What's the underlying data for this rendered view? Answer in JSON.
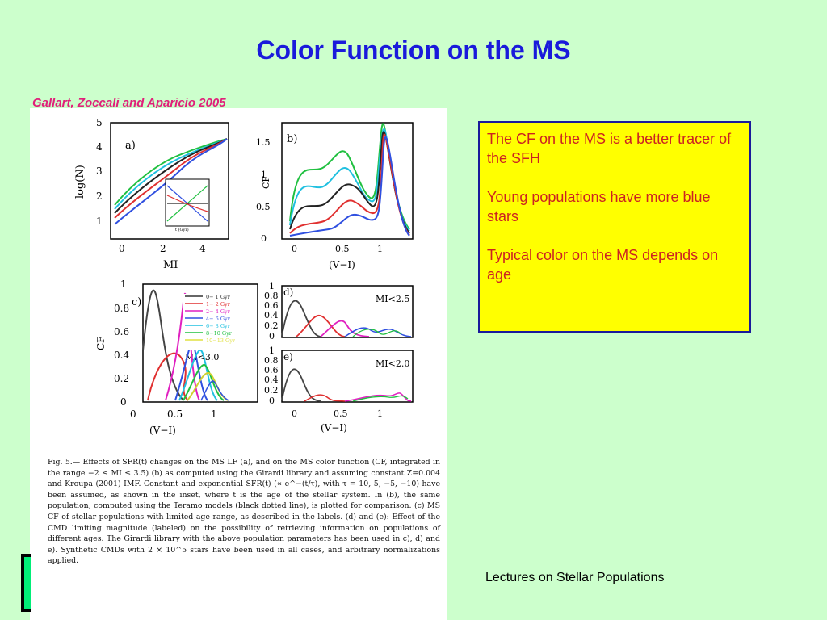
{
  "slide": {
    "title": "Color Function on the MS",
    "citation": "Gallart, Zoccali and Aparicio 2005",
    "bullets": [
      "The CF on the MS is a better tracer of the SFH",
      "Young populations have more blue stars",
      "Typical color on the MS depends on age"
    ],
    "footer": "Lectures on Stellar Populations"
  },
  "figure": {
    "caption": "Fig. 5.— Effects of SFR(t) changes on the MS LF (a), and on the MS color function (CF, integrated in the range −2 ≤ MI ≤ 3.5) (b) as computed using the Girardi library and assuming constant Z=0.004 and Kroupa (2001) IMF. Constant and exponential SFR(t) (∝ e^−(t/τ), with τ = 10, 5, −5, −10) have been assumed, as shown in the inset, where t is the age of the stellar system. In (b), the same population, computed using the Teramo models (black dotted line), is plotted for comparison. (c) MS CF of stellar populations with limited age range, as described in the labels. (d) and (e): Effect of the CMD limiting magnitude (labeled) on the possibility of retrieving information on populations of different ages. The Girardi library with the above population parameters has been used in c), d) and e). Synthetic CMDs with 2 × 10^5 stars have been used in all cases, and arbitrary normalizations applied.",
    "panels": {
      "a": {
        "label": "a)",
        "xlabel": "MI",
        "ylabel": "log(N)",
        "xticks": [
          "0",
          "2",
          "4"
        ],
        "yticks": [
          "1",
          "2",
          "3",
          "4",
          "5"
        ],
        "inset_xlabel": "t (Gyr)"
      },
      "b": {
        "label": "b)",
        "xlabel": "(V−I)",
        "ylabel": "CF",
        "xticks": [
          "0",
          "0.5",
          "1"
        ],
        "yticks": [
          "0",
          "0.5",
          "1",
          "1.5"
        ]
      },
      "c": {
        "label": "c)",
        "xlabel": "(V−I)",
        "ylabel": "CF",
        "xticks": [
          "0",
          "0.5",
          "1"
        ],
        "yticks": [
          "0",
          "0.2",
          "0.4",
          "0.6",
          "0.8",
          "1"
        ],
        "annotation": "MI<3.0",
        "legend": [
          {
            "label": "0− 1 Gyr",
            "color": "#333333"
          },
          {
            "label": "1− 2 Gyr",
            "color": "#e03030"
          },
          {
            "label": "2− 4 Gyr",
            "color": "#e020c0"
          },
          {
            "label": "4− 6 Gyr",
            "color": "#3050e0"
          },
          {
            "label": "6− 8 Gyr",
            "color": "#20c0e0"
          },
          {
            "label": "8−10 Gyr",
            "color": "#20c040"
          },
          {
            "label": "10−13 Gyr",
            "color": "#e0e040"
          }
        ]
      },
      "d": {
        "label": "d)",
        "xlabel": "",
        "ylabel": "",
        "xticks": [],
        "yticks": [
          "0",
          "0.2",
          "0.4",
          "0.6",
          "0.8",
          "1"
        ],
        "annotation": "MI<2.5"
      },
      "e": {
        "label": "e)",
        "xlabel": "(V−I)",
        "ylabel": "",
        "xticks": [
          "0",
          "0.5",
          "1"
        ],
        "yticks": [
          "0",
          "0.2",
          "0.4",
          "0.6",
          "0.8",
          "1"
        ],
        "annotation": "MI<2.0"
      }
    }
  },
  "colors": {
    "background": "#ccffcc",
    "title": "#1a1adb",
    "citation": "#e0207a",
    "textbox_bg": "#ffff00",
    "textbox_text": "#cc2222"
  }
}
